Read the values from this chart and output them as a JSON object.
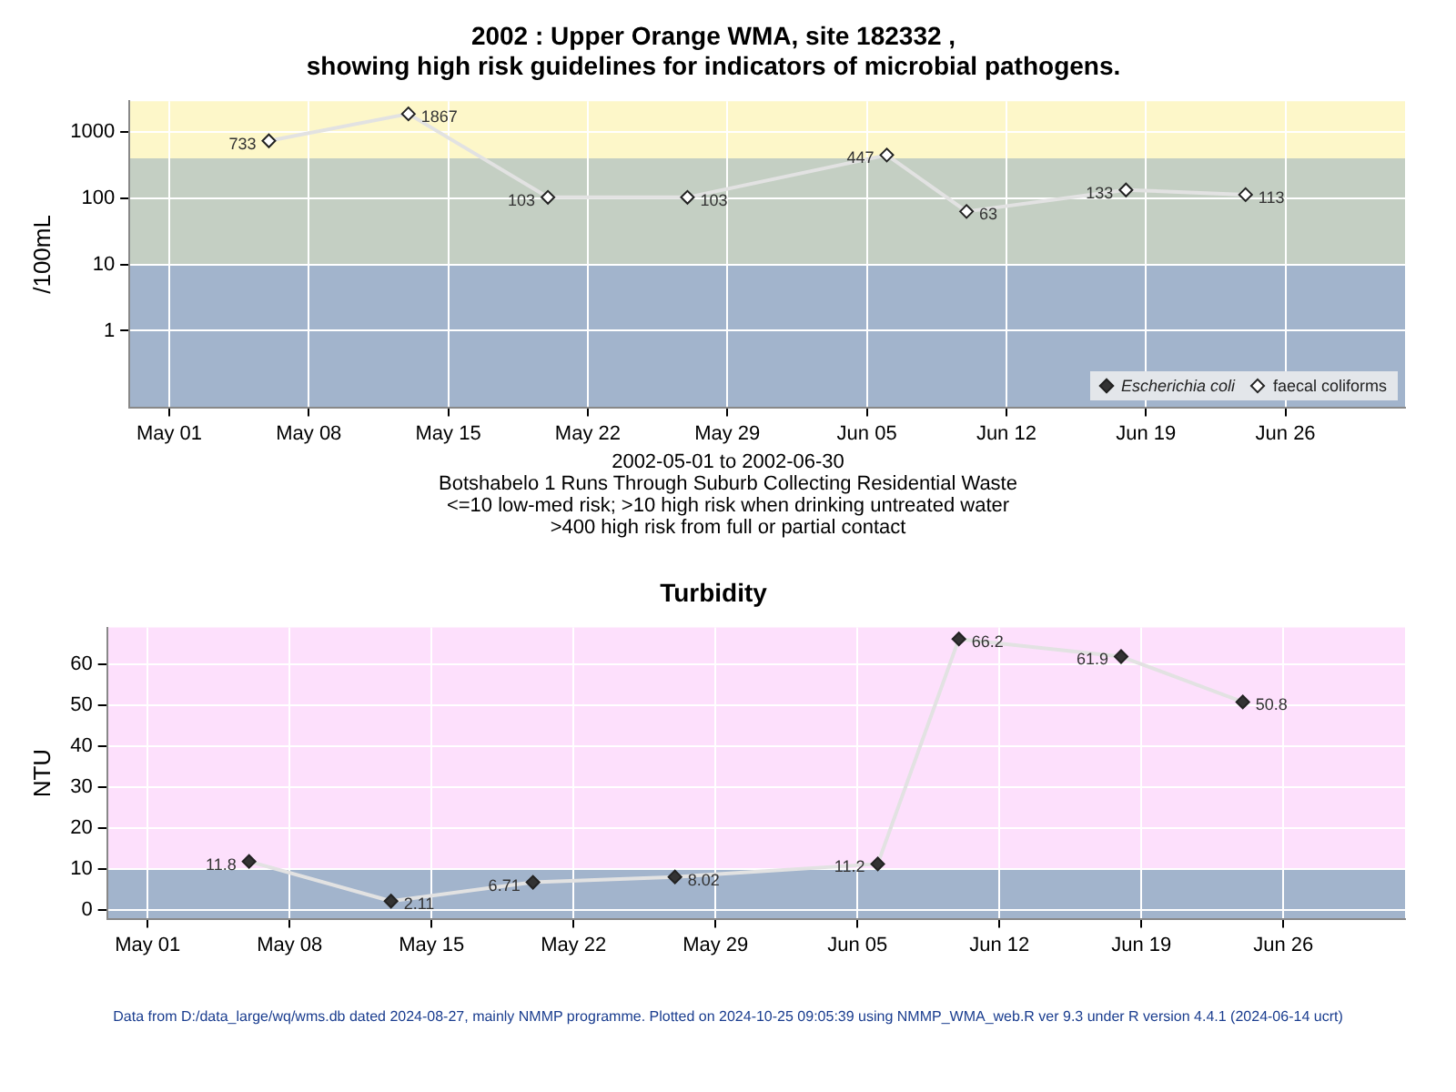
{
  "chart_data": [
    {
      "type": "line",
      "title": "2002 : Upper Orange WMA, site 182332 ,\nshowing high risk guidelines for indicators of microbial pathogens.",
      "ylabel": "/100mL",
      "log": "y",
      "grid": true,
      "marker": "diamond",
      "legend": "bottom right",
      "data_labels": true,
      "x": [
        "2002-05-06",
        "2002-05-13",
        "2002-05-20",
        "2002-05-27",
        "2002-06-06",
        "2002-06-10",
        "2002-06-18",
        "2002-06-24"
      ],
      "xlim": [
        "2002-04-29",
        "2002-07-02"
      ],
      "xticks": [
        {
          "value": "2002-05-01",
          "label": "May 01"
        },
        {
          "value": "2002-05-08",
          "label": "May 08"
        },
        {
          "value": "2002-05-15",
          "label": "May 15"
        },
        {
          "value": "2002-05-22",
          "label": "May 22"
        },
        {
          "value": "2002-05-29",
          "label": "May 29"
        },
        {
          "value": "2002-06-05",
          "label": "Jun 05"
        },
        {
          "value": "2002-06-12",
          "label": "Jun 12"
        },
        {
          "value": "2002-06-19",
          "label": "Jun 19"
        },
        {
          "value": "2002-06-26",
          "label": "Jun 26"
        }
      ],
      "ylim": [
        0.07,
        2900
      ],
      "yticks": [
        1,
        10,
        100,
        1000
      ],
      "bands": [
        {
          "axis": "y",
          "from": 0.07,
          "to": 10,
          "color": "#a2b4cc"
        },
        {
          "axis": "y",
          "from": 10,
          "to": 400,
          "color": "#c4cfc3"
        },
        {
          "axis": "y",
          "from": 400,
          "to": 2900,
          "color": "#fdf7c9"
        }
      ],
      "series": [
        {
          "name": "Escherichia coli",
          "color": "#333333",
          "values": [
            null,
            null,
            null,
            null,
            null,
            null,
            null,
            null
          ]
        },
        {
          "name": "faecal coliforms",
          "color": "#ffffff",
          "values": [
            733,
            1867,
            103,
            103,
            447,
            63,
            133,
            113
          ]
        }
      ],
      "annotations": [
        "2002-05-01 to 2002-06-30",
        "Botshabelo 1 Runs Through Suburb Collecting Residential Waste",
        "<=10 low-med risk; >10 high risk when drinking untreated water",
        ">400 high risk from full or partial contact"
      ]
    },
    {
      "type": "line",
      "title": "Turbidity",
      "ylabel": "NTU",
      "grid": true,
      "marker": "diamond",
      "data_labels": true,
      "x": [
        "2002-05-06",
        "2002-05-13",
        "2002-05-20",
        "2002-05-27",
        "2002-06-06",
        "2002-06-10",
        "2002-06-18",
        "2002-06-24"
      ],
      "xlim": [
        "2002-04-29",
        "2002-07-02"
      ],
      "xticks": [
        {
          "value": "2002-05-01",
          "label": "May 01"
        },
        {
          "value": "2002-05-08",
          "label": "May 08"
        },
        {
          "value": "2002-05-15",
          "label": "May 15"
        },
        {
          "value": "2002-05-22",
          "label": "May 22"
        },
        {
          "value": "2002-05-29",
          "label": "May 29"
        },
        {
          "value": "2002-06-05",
          "label": "Jun 05"
        },
        {
          "value": "2002-06-12",
          "label": "Jun 12"
        },
        {
          "value": "2002-06-19",
          "label": "Jun 19"
        },
        {
          "value": "2002-06-26",
          "label": "Jun 26"
        }
      ],
      "ylim": [
        -2.2,
        69
      ],
      "yticks": [
        0,
        10,
        20,
        30,
        40,
        50,
        60
      ],
      "bands": [
        {
          "axis": "y",
          "from": -2.2,
          "to": 10,
          "color": "#a2b4cc"
        },
        {
          "axis": "y",
          "from": 10,
          "to": 69,
          "color": "#fde0fc"
        }
      ],
      "series": [
        {
          "color": "#333333",
          "values": [
            11.8,
            2.11,
            6.71,
            8.02,
            11.2,
            66.2,
            61.9,
            50.8
          ]
        }
      ],
      "annotations": [
        "Data from D:/data_large/wq/wms.db dated 2024-08-27, mainly NMMP programme. Plotted on 2024-10-25 09:05:39 using NMMP_WMA_web.R ver 9.3 under R version 4.4.1 (2024-06-14 ucrt)"
      ]
    }
  ]
}
